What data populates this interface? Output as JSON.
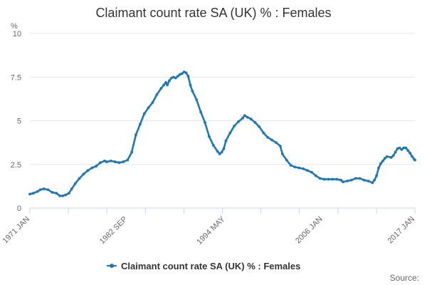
{
  "chart_data": {
    "type": "line",
    "title": "Claimant count rate SA (UK) % : Females",
    "ylabel": "%",
    "xlabel": "",
    "ylim": [
      0,
      10
    ],
    "yticks": [
      0,
      2.5,
      5,
      7.5,
      10
    ],
    "ytick_labels": [
      "0",
      "2.5",
      "5",
      "7.5",
      "10"
    ],
    "x_range": [
      "1971-01",
      "2017-01"
    ],
    "xtick_labels": [
      "1971 JAN",
      "1982 SEP",
      "1994 MAY",
      "2006 JAN",
      "2017 JAN"
    ],
    "xticks": [
      "1971-01",
      "1982-09",
      "1994-05",
      "2006-01",
      "2017-01"
    ],
    "grid": "horizontal",
    "legend": "bottom",
    "marker": "circle",
    "color": "#1f77b4",
    "source_label": "Source:",
    "series": [
      {
        "name": "Claimant count rate SA (UK) % : Females",
        "points": [
          [
            "1971-01",
            0.8
          ],
          [
            "1971-06",
            0.85
          ],
          [
            "1971-12",
            0.95
          ],
          [
            "1972-04",
            1.05
          ],
          [
            "1972-09",
            1.1
          ],
          [
            "1973-03",
            1.05
          ],
          [
            "1973-09",
            0.9
          ],
          [
            "1974-03",
            0.85
          ],
          [
            "1974-08",
            0.7
          ],
          [
            "1974-12",
            0.7
          ],
          [
            "1975-04",
            0.75
          ],
          [
            "1975-09",
            0.85
          ],
          [
            "1976-01",
            1.1
          ],
          [
            "1976-06",
            1.4
          ],
          [
            "1976-12",
            1.7
          ],
          [
            "1977-06",
            1.95
          ],
          [
            "1977-12",
            2.15
          ],
          [
            "1978-06",
            2.3
          ],
          [
            "1978-12",
            2.4
          ],
          [
            "1979-06",
            2.6
          ],
          [
            "1979-12",
            2.7
          ],
          [
            "1980-03",
            2.65
          ],
          [
            "1980-09",
            2.7
          ],
          [
            "1981-03",
            2.65
          ],
          [
            "1981-09",
            2.6
          ],
          [
            "1982-03",
            2.65
          ],
          [
            "1982-09",
            2.75
          ],
          [
            "1983-03",
            3.2
          ],
          [
            "1983-09",
            4.2
          ],
          [
            "1984-03",
            4.8
          ],
          [
            "1984-09",
            5.4
          ],
          [
            "1985-03",
            5.75
          ],
          [
            "1985-09",
            6.05
          ],
          [
            "1986-03",
            6.5
          ],
          [
            "1986-09",
            6.85
          ],
          [
            "1987-01",
            7.05
          ],
          [
            "1987-04",
            7.2
          ],
          [
            "1987-06",
            7.05
          ],
          [
            "1987-09",
            7.3
          ],
          [
            "1987-12",
            7.45
          ],
          [
            "1988-03",
            7.5
          ],
          [
            "1988-06",
            7.45
          ],
          [
            "1988-09",
            7.55
          ],
          [
            "1988-12",
            7.65
          ],
          [
            "1989-03",
            7.7
          ],
          [
            "1989-06",
            7.8
          ],
          [
            "1989-09",
            7.75
          ],
          [
            "1989-12",
            7.55
          ],
          [
            "1990-03",
            7.05
          ],
          [
            "1990-06",
            6.7
          ],
          [
            "1990-12",
            6.2
          ],
          [
            "1991-06",
            5.5
          ],
          [
            "1991-12",
            4.9
          ],
          [
            "1992-06",
            4.1
          ],
          [
            "1992-12",
            3.6
          ],
          [
            "1993-06",
            3.25
          ],
          [
            "1993-09",
            3.1
          ],
          [
            "1993-12",
            3.2
          ],
          [
            "1994-03",
            3.4
          ],
          [
            "1994-06",
            3.85
          ],
          [
            "1994-12",
            4.3
          ],
          [
            "1995-06",
            4.7
          ],
          [
            "1995-12",
            4.95
          ],
          [
            "1996-06",
            5.15
          ],
          [
            "1996-09",
            5.3
          ],
          [
            "1997-01",
            5.2
          ],
          [
            "1997-06",
            5.1
          ],
          [
            "1997-12",
            4.9
          ],
          [
            "1998-06",
            4.65
          ],
          [
            "1998-12",
            4.3
          ],
          [
            "1999-06",
            4.05
          ],
          [
            "1999-12",
            3.9
          ],
          [
            "2000-06",
            3.75
          ],
          [
            "2000-12",
            3.55
          ],
          [
            "2001-03",
            3.1
          ],
          [
            "2001-09",
            2.75
          ],
          [
            "2002-03",
            2.45
          ],
          [
            "2002-09",
            2.35
          ],
          [
            "2003-03",
            2.3
          ],
          [
            "2003-09",
            2.25
          ],
          [
            "2004-03",
            2.15
          ],
          [
            "2004-09",
            2.05
          ],
          [
            "2005-03",
            1.85
          ],
          [
            "2005-09",
            1.7
          ],
          [
            "2006-03",
            1.65
          ],
          [
            "2006-09",
            1.65
          ],
          [
            "2007-03",
            1.65
          ],
          [
            "2007-09",
            1.65
          ],
          [
            "2008-03",
            1.6
          ],
          [
            "2008-06",
            1.5
          ],
          [
            "2008-12",
            1.55
          ],
          [
            "2009-06",
            1.6
          ],
          [
            "2009-12",
            1.7
          ],
          [
            "2010-06",
            1.7
          ],
          [
            "2010-12",
            1.6
          ],
          [
            "2011-06",
            1.55
          ],
          [
            "2011-12",
            1.45
          ],
          [
            "2012-03",
            1.6
          ],
          [
            "2012-06",
            1.85
          ],
          [
            "2012-09",
            2.3
          ],
          [
            "2012-12",
            2.55
          ],
          [
            "2013-03",
            2.7
          ],
          [
            "2013-06",
            2.85
          ],
          [
            "2013-09",
            2.95
          ],
          [
            "2014-03",
            2.9
          ],
          [
            "2014-06",
            3.0
          ],
          [
            "2014-09",
            3.2
          ],
          [
            "2014-12",
            3.4
          ],
          [
            "2015-03",
            3.45
          ],
          [
            "2015-06",
            3.35
          ],
          [
            "2015-09",
            3.45
          ],
          [
            "2015-12",
            3.45
          ],
          [
            "2016-03",
            3.3
          ],
          [
            "2016-06",
            3.15
          ],
          [
            "2016-09",
            2.95
          ],
          [
            "2016-12",
            2.8
          ],
          [
            "2017-01",
            2.75
          ]
        ]
      }
    ]
  }
}
